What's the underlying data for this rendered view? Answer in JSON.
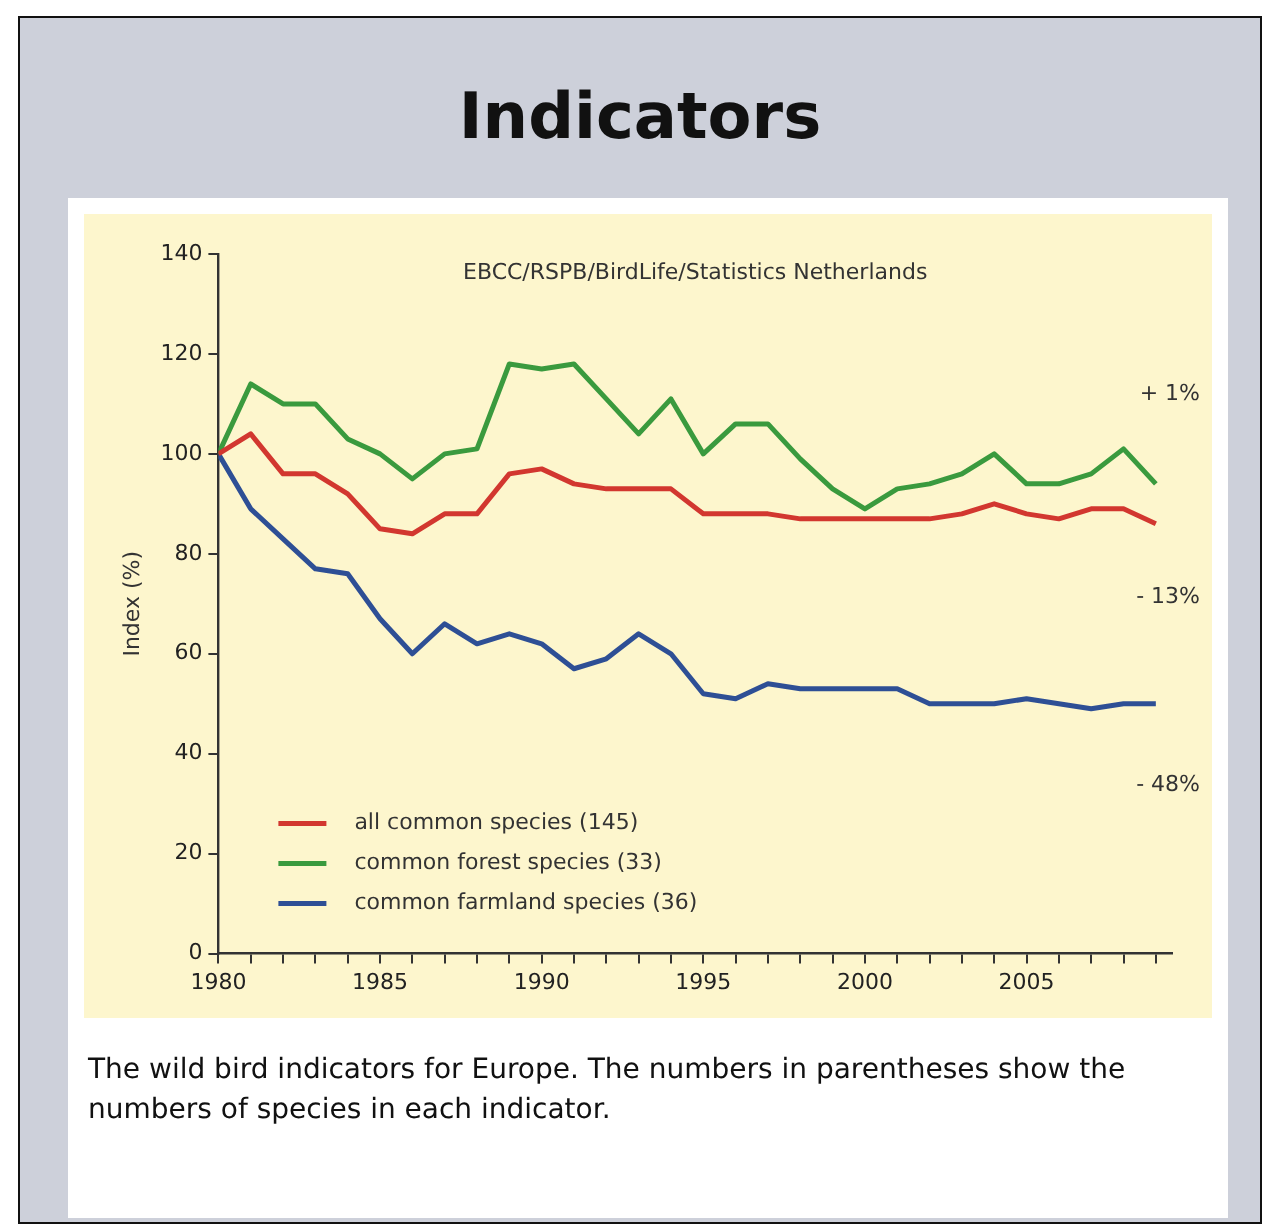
{
  "chart_data": {
    "type": "line",
    "title": "Indicators",
    "ylabel": "Index (%)",
    "x": [
      1980,
      1981,
      1982,
      1983,
      1984,
      1985,
      1986,
      1987,
      1988,
      1989,
      1990,
      1991,
      1992,
      1993,
      1994,
      1995,
      1996,
      1997,
      1998,
      1999,
      2000,
      2001,
      2002,
      2003,
      2004,
      2005,
      2006,
      2007,
      2008,
      2009
    ],
    "series": [
      {
        "name": "all common species (145)",
        "color": "#d2372f",
        "values": [
          100,
          104,
          96,
          96,
          92,
          85,
          84,
          88,
          88,
          96,
          97,
          94,
          93,
          93,
          93,
          88,
          88,
          88,
          87,
          87,
          87,
          87,
          87,
          88,
          90,
          88,
          87,
          89,
          89,
          86
        ]
      },
      {
        "name": "common forest species (33)",
        "color": "#3a9a3e",
        "values": [
          100,
          114,
          110,
          110,
          103,
          100,
          95,
          100,
          101,
          118,
          117,
          118,
          111,
          104,
          111,
          100,
          106,
          106,
          99,
          93,
          89,
          93,
          94,
          96,
          100,
          94,
          94,
          96,
          101,
          94
        ]
      },
      {
        "name": "common farmland species (36)",
        "color": "#2e4f95",
        "values": [
          100,
          89,
          83,
          77,
          76,
          67,
          60,
          66,
          62,
          64,
          62,
          57,
          59,
          64,
          60,
          52,
          51,
          54,
          53,
          53,
          53,
          53,
          50,
          50,
          50,
          51,
          50,
          49,
          50,
          50
        ]
      }
    ],
    "xlim": [
      1980,
      2009.5
    ],
    "xticks": [
      1980,
      {
        "value": 1981,
        "label": null
      },
      {
        "value": 1982,
        "label": null
      },
      {
        "value": 1983,
        "label": null
      },
      {
        "value": 1984,
        "label": null
      },
      1985,
      {
        "value": 1986,
        "label": null
      },
      {
        "value": 1987,
        "label": null
      },
      {
        "value": 1988,
        "label": null
      },
      {
        "value": 1989,
        "label": null
      },
      1990,
      {
        "value": 1991,
        "label": null
      },
      {
        "value": 1992,
        "label": null
      },
      {
        "value": 1993,
        "label": null
      },
      {
        "value": 1994,
        "label": null
      },
      1995,
      {
        "value": 1996,
        "label": null
      },
      {
        "value": 1997,
        "label": null
      },
      {
        "value": 1998,
        "label": null
      },
      {
        "value": 1999,
        "label": null
      },
      2000,
      {
        "value": 2001,
        "label": null
      },
      {
        "value": 2002,
        "label": null
      },
      {
        "value": 2003,
        "label": null
      },
      {
        "value": 2004,
        "label": null
      },
      2005,
      {
        "value": 2006,
        "label": null
      },
      {
        "value": 2007,
        "label": null
      },
      {
        "value": 2008,
        "label": null
      },
      {
        "value": 2009,
        "label": null
      }
    ],
    "ylim": [
      0,
      140
    ],
    "yticks": [
      0,
      20,
      40,
      60,
      80,
      100,
      120,
      140
    ],
    "grid": false,
    "legend": "bottom left",
    "marker": "none",
    "line_style": "solid",
    "annotations": [
      "EBCC/RSPB/BirdLife/Statistics Netherlands",
      "+ 1%",
      "- 13%",
      "- 48%",
      "The wild bird indicators for Europe. The numbers in parentheses show the numbers of species in each indicator."
    ]
  }
}
